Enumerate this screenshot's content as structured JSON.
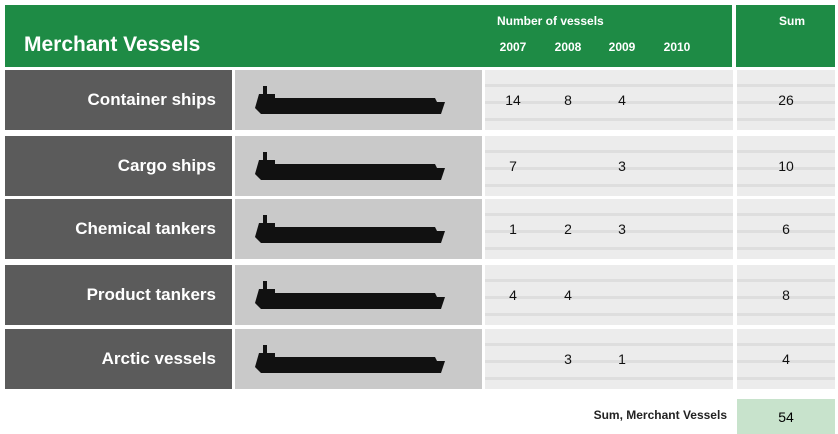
{
  "header": {
    "title": "Merchant Vessels",
    "group_label": "Number of vessels",
    "years": [
      "2007",
      "2008",
      "2009",
      "2010"
    ],
    "sum_label": "Sum"
  },
  "table": {
    "rows": [
      {
        "name": "Container ships",
        "counts": [
          14,
          8,
          4,
          null
        ],
        "sum": 26
      },
      {
        "name": "Cargo ships",
        "counts": [
          7,
          null,
          3,
          null
        ],
        "sum": 10
      },
      {
        "name": "Chemical tankers",
        "counts": [
          1,
          2,
          3,
          null
        ],
        "sum": 6
      },
      {
        "name": "Product tankers",
        "counts": [
          4,
          4,
          null,
          null
        ],
        "sum": 8
      },
      {
        "name": "Arctic vessels",
        "counts": [
          null,
          3,
          1,
          null
        ],
        "sum": 4
      }
    ]
  },
  "footer": {
    "label": "Sum, Merchant Vessels",
    "total": 54
  }
}
